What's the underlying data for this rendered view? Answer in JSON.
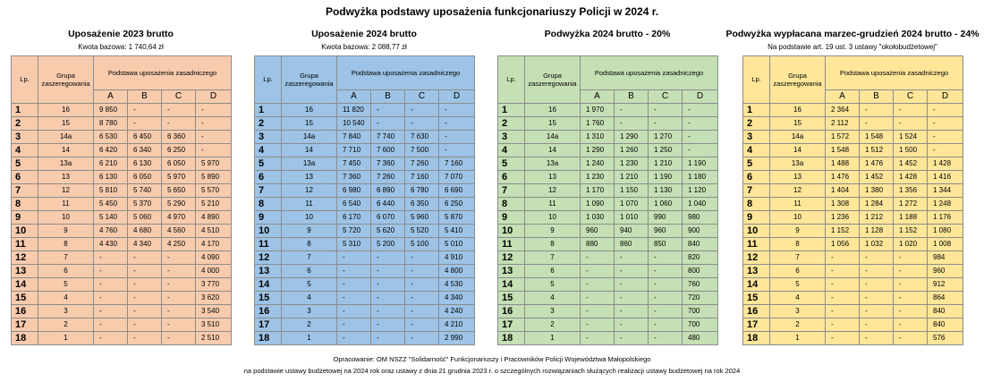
{
  "header": {
    "title": "Podwyżka podstawy uposażenia funkcjonariuszy Policji w 2024 r."
  },
  "tables": [
    {
      "title": "Uposażenie 2023 brutto",
      "subtitle": "Kwota bazowa: 1 740,64 zł",
      "color": "#f8cbad",
      "headers": [
        "Lp.",
        "Grupa zaszeregowania",
        "Podstawa uposażenia zasadniczego",
        "A",
        "B",
        "C",
        "D"
      ],
      "rows": [
        [
          "1",
          "16",
          "9 850",
          "-",
          "-",
          "-"
        ],
        [
          "2",
          "15",
          "8 780",
          "-",
          "-",
          "-"
        ],
        [
          "3",
          "14a",
          "6 530",
          "6 450",
          "6 360",
          "-"
        ],
        [
          "4",
          "14",
          "6 420",
          "6 340",
          "6 250",
          "-"
        ],
        [
          "5",
          "13a",
          "6 210",
          "6 130",
          "6 050",
          "5 970"
        ],
        [
          "6",
          "13",
          "6 130",
          "6 050",
          "5 970",
          "5 890"
        ],
        [
          "7",
          "12",
          "5 810",
          "5 740",
          "5 650",
          "5 570"
        ],
        [
          "8",
          "11",
          "5 450",
          "5 370",
          "5 290",
          "5 210"
        ],
        [
          "9",
          "10",
          "5 140",
          "5 060",
          "4 970",
          "4 890"
        ],
        [
          "10",
          "9",
          "4 760",
          "4 680",
          "4 560",
          "4 510"
        ],
        [
          "11",
          "8",
          "4 430",
          "4 340",
          "4 250",
          "4 170"
        ],
        [
          "12",
          "7",
          "-",
          "-",
          "-",
          "4 090"
        ],
        [
          "13",
          "6",
          "-",
          "-",
          "-",
          "4 000"
        ],
        [
          "14",
          "5",
          "-",
          "-",
          "-",
          "3 770"
        ],
        [
          "15",
          "4",
          "-",
          "-",
          "-",
          "3 620"
        ],
        [
          "16",
          "3",
          "-",
          "-",
          "-",
          "3 540"
        ],
        [
          "17",
          "2",
          "-",
          "-",
          "-",
          "3 510"
        ],
        [
          "18",
          "1",
          "-",
          "-",
          "-",
          "2 510"
        ]
      ]
    },
    {
      "title": "Uposażenie 2024 brutto",
      "subtitle": "Kwota bazowa: 2 088,77 zł",
      "color": "#9dc3e6",
      "headers": [
        "Lp.",
        "Grupa zaszeregowania",
        "Podstawa uposażenia zasadniczego",
        "A",
        "B",
        "C",
        "D"
      ],
      "rows": [
        [
          "1",
          "16",
          "11 820",
          "-",
          "-",
          "-"
        ],
        [
          "2",
          "15",
          "10 540",
          "-",
          "-",
          "-"
        ],
        [
          "3",
          "14a",
          "7 840",
          "7 740",
          "7 630",
          "-"
        ],
        [
          "4",
          "14",
          "7 710",
          "7 600",
          "7 500",
          "-"
        ],
        [
          "5",
          "13a",
          "7 450",
          "7 360",
          "7 260",
          "7 160"
        ],
        [
          "6",
          "13",
          "7 360",
          "7 260",
          "7 160",
          "7 070"
        ],
        [
          "7",
          "12",
          "6 980",
          "6 890",
          "6 780",
          "6 690"
        ],
        [
          "8",
          "11",
          "6 540",
          "6 440",
          "6 350",
          "6 250"
        ],
        [
          "9",
          "10",
          "6 170",
          "6 070",
          "5 960",
          "5 870"
        ],
        [
          "10",
          "9",
          "5 720",
          "5 620",
          "5 520",
          "5 410"
        ],
        [
          "11",
          "8",
          "5 310",
          "5 200",
          "5 100",
          "5 010"
        ],
        [
          "12",
          "7",
          "-",
          "-",
          "-",
          "4 910"
        ],
        [
          "13",
          "6",
          "-",
          "-",
          "-",
          "4 800"
        ],
        [
          "14",
          "5",
          "-",
          "-",
          "-",
          "4 530"
        ],
        [
          "15",
          "4",
          "-",
          "-",
          "-",
          "4 340"
        ],
        [
          "16",
          "3",
          "-",
          "-",
          "-",
          "4 240"
        ],
        [
          "17",
          "2",
          "-",
          "-",
          "-",
          "4 210"
        ],
        [
          "18",
          "1",
          "-",
          "-",
          "-",
          "2 990"
        ]
      ]
    },
    {
      "title": "Podwyżka 2024 brutto - 20%",
      "color": "#c5e0b4",
      "headers": [
        "Lp.",
        "Grupa zaszeregowania",
        "Podstawa uposażenia zasadniczego",
        "A",
        "B",
        "C",
        "D"
      ],
      "rows": [
        [
          "1",
          "16",
          "1 970",
          "-",
          "-",
          "-"
        ],
        [
          "2",
          "15",
          "1 760",
          "-",
          "-",
          "-"
        ],
        [
          "3",
          "14a",
          "1 310",
          "1 290",
          "1 270",
          "-"
        ],
        [
          "4",
          "14",
          "1 290",
          "1 260",
          "1 250",
          "-"
        ],
        [
          "5",
          "13a",
          "1 240",
          "1 230",
          "1 210",
          "1 190"
        ],
        [
          "6",
          "13",
          "1 230",
          "1 210",
          "1 190",
          "1 180"
        ],
        [
          "7",
          "12",
          "1 170",
          "1 150",
          "1 130",
          "1 120"
        ],
        [
          "8",
          "11",
          "1 090",
          "1 070",
          "1 060",
          "1 040"
        ],
        [
          "9",
          "10",
          "1 030",
          "1 010",
          "990",
          "980"
        ],
        [
          "10",
          "9",
          "960",
          "940",
          "960",
          "900"
        ],
        [
          "11",
          "8",
          "880",
          "860",
          "850",
          "840"
        ],
        [
          "12",
          "7",
          "-",
          "-",
          "-",
          "820"
        ],
        [
          "13",
          "6",
          "-",
          "-",
          "-",
          "800"
        ],
        [
          "14",
          "5",
          "-",
          "-",
          "-",
          "760"
        ],
        [
          "15",
          "4",
          "-",
          "-",
          "-",
          "720"
        ],
        [
          "16",
          "3",
          "-",
          "-",
          "-",
          "700"
        ],
        [
          "17",
          "2",
          "-",
          "-",
          "-",
          "700"
        ],
        [
          "18",
          "1",
          "-",
          "-",
          "-",
          "480"
        ]
      ]
    },
    {
      "title": "Podwyżka wypłacana marzec-grudzień 2024 brutto - 24%",
      "subtitle": "Na podstawie art. 19 ust. 3 ustawy \"okołobudżetowej\"",
      "color": "#ffe699",
      "headers": [
        "Lp.",
        "Grupa zaszeregowania",
        "Podstawa uposażenia zasadniczego",
        "A",
        "B",
        "C",
        "D"
      ],
      "rows": [
        [
          "1",
          "16",
          "2 364",
          "-",
          "-",
          "-"
        ],
        [
          "2",
          "15",
          "2 112",
          "-",
          "-",
          "-"
        ],
        [
          "3",
          "14a",
          "1 572",
          "1 548",
          "1 524",
          "-"
        ],
        [
          "4",
          "14",
          "1 548",
          "1 512",
          "1 500",
          "-"
        ],
        [
          "5",
          "13a",
          "1 488",
          "1 476",
          "1 452",
          "1 428"
        ],
        [
          "6",
          "13",
          "1 476",
          "1 452",
          "1 428",
          "1 416"
        ],
        [
          "7",
          "12",
          "1 404",
          "1 380",
          "1 356",
          "1 344"
        ],
        [
          "8",
          "11",
          "1 308",
          "1 284",
          "1 272",
          "1 248"
        ],
        [
          "9",
          "10",
          "1 236",
          "1 212",
          "1 188",
          "1 176"
        ],
        [
          "10",
          "9",
          "1 152",
          "1 128",
          "1 152",
          "1 080"
        ],
        [
          "11",
          "8",
          "1 056",
          "1 032",
          "1 020",
          "1 008"
        ],
        [
          "12",
          "7",
          "-",
          "-",
          "-",
          "984"
        ],
        [
          "13",
          "6",
          "-",
          "-",
          "-",
          "960"
        ],
        [
          "14",
          "5",
          "-",
          "-",
          "-",
          "912"
        ],
        [
          "15",
          "4",
          "-",
          "-",
          "-",
          "864"
        ],
        [
          "16",
          "3",
          "-",
          "-",
          "-",
          "840"
        ],
        [
          "17",
          "2",
          "-",
          "-",
          "-",
          "840"
        ],
        [
          "18",
          "1",
          "-",
          "-",
          "-",
          "576"
        ]
      ]
    }
  ],
  "footer": {
    "lines": [
      "Opracowanie: OM NSZZ \"Solidarność\" Funkcjonariuszy i Pracowników Policji Województwa Małopolskiego",
      "na podstawie ustawy budżetowej na 2024 rok oraz ustawy z dnia 21 grudnia 2023 r. o szczególnych rozwiązaniach służących realizacji ustawy budżetowej na rok 2024"
    ]
  }
}
